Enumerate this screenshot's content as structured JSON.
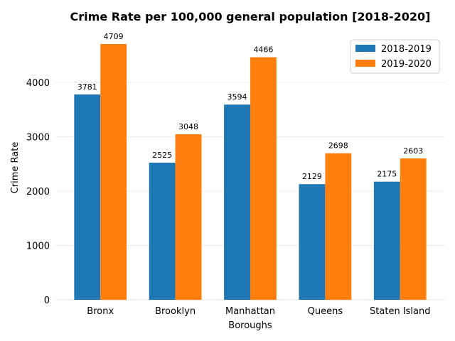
{
  "chart_data": {
    "type": "bar",
    "title": "Crime Rate per 100,000 general population [2018-2020]",
    "xlabel": "Boroughs",
    "ylabel": "Crime Rate",
    "categories": [
      "Bronx",
      "Brooklyn",
      "Manhattan",
      "Queens",
      "Staten Island"
    ],
    "series": [
      {
        "name": "2018-2019",
        "color": "#1f77b4",
        "values": [
          3781,
          2525,
          3594,
          2129,
          2175
        ]
      },
      {
        "name": "2019-2020",
        "color": "#ff7f0e",
        "values": [
          4709,
          3048,
          4466,
          2698,
          2603
        ]
      }
    ],
    "yticks": [
      0,
      1000,
      2000,
      3000,
      4000
    ],
    "ylim": [
      0,
      4944
    ],
    "grid": "horizontal",
    "legend_position": "top-right"
  }
}
